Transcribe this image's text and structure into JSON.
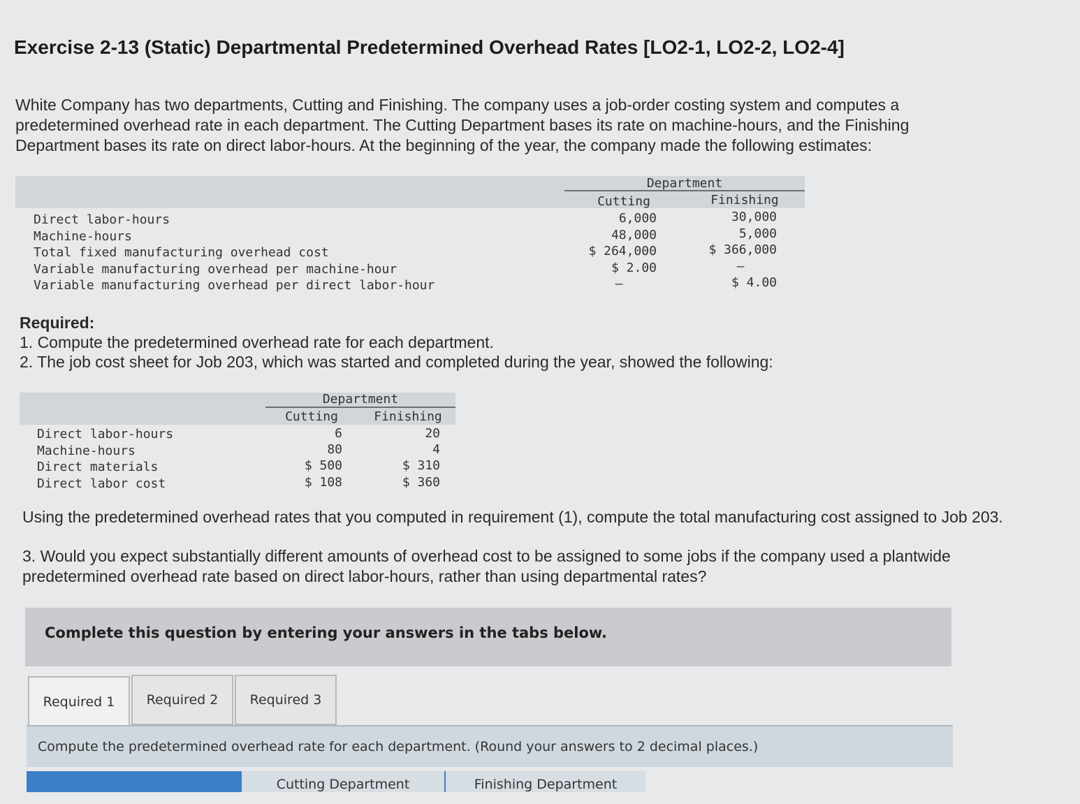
{
  "title": "Exercise 2-13 (Static) Departmental Predetermined Overhead Rates [LO2-1, LO2-2, LO2-4]",
  "intro": "White Company has two departments, Cutting and Finishing. The company uses a job-order costing system and computes a predetermined overhead rate in each department. The Cutting Department bases its rate on machine-hours, and the Finishing Department bases its rate on direct labor-hours. At the beginning of the year, the company made the following estimates:",
  "estimates": {
    "group_header": "Department",
    "col_cutting": "Cutting",
    "col_finishing": "Finishing",
    "rows": [
      {
        "label": "Direct labor-hours",
        "cutting": "6,000",
        "finishing": "30,000"
      },
      {
        "label": "Machine-hours",
        "cutting": "48,000",
        "finishing": "5,000"
      },
      {
        "label": "Total fixed manufacturing overhead cost",
        "cutting": "$ 264,000",
        "finishing": "$ 366,000"
      },
      {
        "label": "Variable manufacturing overhead per machine-hour",
        "cutting": "$ 2.00",
        "finishing": "–"
      },
      {
        "label": "Variable manufacturing overhead per direct labor-hour",
        "cutting": "–",
        "finishing": "$ 4.00"
      }
    ]
  },
  "required": {
    "heading": "Required:",
    "item1": "1. Compute the predetermined overhead rate for each department.",
    "item2": "2. The job cost sheet for Job 203, which was started and completed during the year, showed the following:"
  },
  "job203": {
    "group_header": "Department",
    "col_cutting": "Cutting",
    "col_finishing": "Finishing",
    "rows": [
      {
        "label": "Direct labor-hours",
        "cutting": "6",
        "finishing": "20"
      },
      {
        "label": "Machine-hours",
        "cutting": "80",
        "finishing": "4"
      },
      {
        "label": "Direct materials",
        "cutting": "$ 500",
        "finishing": "$ 310"
      },
      {
        "label": "Direct labor cost",
        "cutting": "$ 108",
        "finishing": "$ 360"
      }
    ]
  },
  "using_text": "Using the predetermined overhead rates that you computed in requirement (1), compute the total manufacturing cost assigned to Job 203.",
  "q3_text": "3. Would you expect substantially different amounts of overhead cost to be assigned to some jobs if the company used a plantwide predetermined overhead rate based on direct labor-hours, rather than using departmental rates?",
  "banner": "Complete this question by entering your answers in the tabs below.",
  "tabs": [
    {
      "label": "Required 1"
    },
    {
      "label": "Required 2"
    },
    {
      "label": "Required 3"
    }
  ],
  "panel_instruction": "Compute the predetermined overhead rate for each department. (Round your answers to 2 decimal places.)",
  "answer_table": {
    "col_cutting": "Cutting Department",
    "col_finishing": "Finishing Department"
  }
}
